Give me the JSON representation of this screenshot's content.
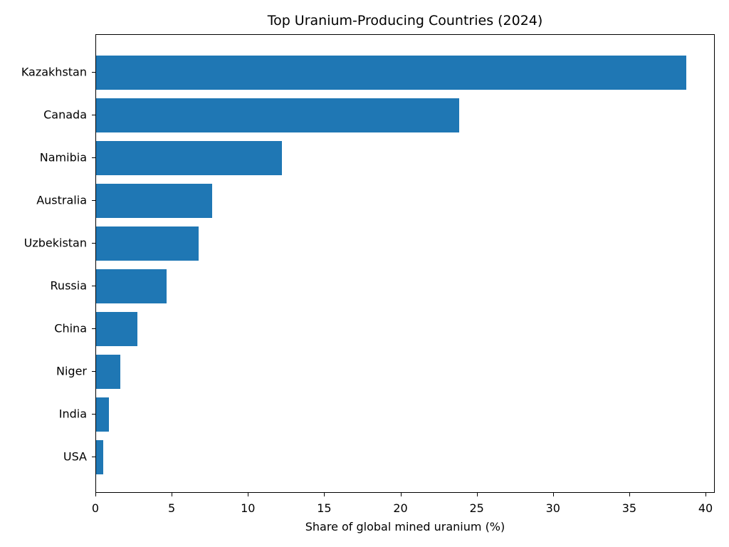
{
  "chart_data": {
    "type": "bar",
    "orientation": "horizontal",
    "title": "Top Uranium-Producing Countries (2024)",
    "xlabel": "Share of global mined uranium (%)",
    "ylabel": "",
    "categories": [
      "Kazakhstan",
      "Canada",
      "Namibia",
      "Australia",
      "Uzbekistan",
      "Russia",
      "China",
      "Niger",
      "India",
      "USA"
    ],
    "values": [
      38.7,
      23.8,
      12.2,
      7.6,
      6.7,
      4.6,
      2.7,
      1.6,
      0.85,
      0.45
    ],
    "xlim": [
      0,
      40.6
    ],
    "xticks": [
      "0",
      "5",
      "10",
      "15",
      "20",
      "25",
      "30",
      "35",
      "40"
    ],
    "grid": false,
    "legend": null,
    "bar_color": "#1f77b4"
  }
}
